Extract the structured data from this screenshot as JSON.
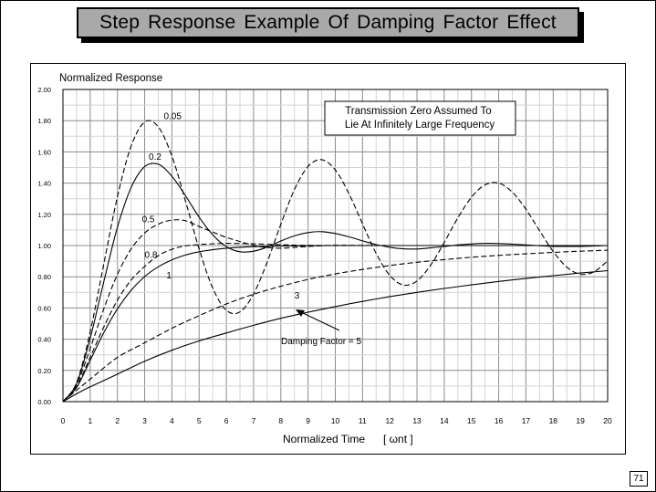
{
  "slide": {
    "title": "Step Response Example Of Damping Factor Effect",
    "page_number": "71"
  },
  "chart_data": {
    "type": "line",
    "ylabel": "Normalized Response",
    "xlabel": "Normalized Time",
    "xlabel_unit": "[ ωnt ]",
    "xlim": [
      0,
      20
    ],
    "ylim": [
      0,
      2
    ],
    "xticks": [
      "0",
      "1",
      "2",
      "3",
      "4",
      "5",
      "6",
      "7",
      "8",
      "9",
      "10",
      "11",
      "12",
      "13",
      "14",
      "15",
      "16",
      "17",
      "18",
      "19",
      "20"
    ],
    "yticks": [
      "0.00",
      "0.20",
      "0.40",
      "0.60",
      "0.80",
      "1.00",
      "1.20",
      "1.40",
      "1.60",
      "1.80",
      "2.00"
    ],
    "grid": true,
    "annotation_box": "Transmission Zero Assumed To Lie At Infinitely Large Frequency",
    "annotation_arrow_label": "Damping Factor = 5",
    "series": [
      {
        "name": "0.05",
        "zeta": 0.05,
        "dash": "6 3",
        "label_at": [
          3.7,
          1.81
        ],
        "x": [
          0,
          0.5,
          1,
          1.5,
          2,
          2.5,
          3,
          3.5,
          4,
          4.5,
          5,
          5.5,
          6,
          6.5,
          7,
          7.5,
          8,
          8.5,
          9,
          9.5,
          10,
          10.5,
          11,
          11.5,
          12,
          12.5,
          13,
          13.5,
          14,
          14.5,
          15,
          15.5,
          16,
          16.5,
          17,
          17.5,
          18,
          18.5,
          19,
          19.5,
          20
        ],
        "values": [
          0,
          0.12,
          0.446,
          0.883,
          1.313,
          1.635,
          1.791,
          1.761,
          1.573,
          1.285,
          0.978,
          0.727,
          0.585,
          0.575,
          0.69,
          0.895,
          1.137,
          1.359,
          1.507,
          1.55,
          1.485,
          1.333,
          1.138,
          0.949,
          0.809,
          0.747,
          0.773,
          0.874,
          1.02,
          1.177,
          1.31,
          1.389,
          1.4,
          1.342,
          1.232,
          1.095,
          0.962,
          0.862,
          0.816,
          0.832,
          0.901
        ]
      },
      {
        "name": "0.2",
        "zeta": 0.2,
        "dash": "none",
        "label_at": [
          3.15,
          1.55
        ],
        "x": [
          0,
          0.5,
          1,
          1.5,
          2,
          2.5,
          3,
          3.5,
          4,
          4.5,
          5,
          5.5,
          6,
          6.5,
          7,
          7.5,
          8,
          8.5,
          9,
          9.5,
          10,
          10.5,
          11,
          11.5,
          12,
          12.5,
          13,
          13.5,
          14,
          14.5,
          15,
          15.5,
          16,
          16.5,
          17,
          17.5,
          18,
          18.5,
          19,
          19.5,
          20
        ],
        "values": [
          0,
          0.115,
          0.405,
          0.769,
          1.117,
          1.37,
          1.505,
          1.521,
          1.444,
          1.319,
          1.182,
          1.069,
          0.993,
          0.96,
          0.964,
          0.99,
          1.029,
          1.062,
          1.083,
          1.089,
          1.077,
          1.056,
          1.03,
          1.006,
          0.989,
          0.979,
          0.978,
          0.985,
          0.994,
          1.004,
          1.01,
          1.014,
          1.013,
          1.009,
          1.004,
          0.999,
          0.995,
          0.994,
          0.995,
          0.997,
          1.0
        ]
      },
      {
        "name": "0.5",
        "zeta": 0.5,
        "dash": "6 3",
        "label_at": [
          2.9,
          1.15
        ],
        "x": [
          0,
          0.5,
          1,
          1.5,
          2,
          2.5,
          3,
          3.5,
          4,
          4.5,
          5,
          5.5,
          6,
          6.5,
          7,
          7.5,
          8,
          8.5,
          9,
          9.5,
          10,
          11,
          12,
          13,
          14,
          15,
          16,
          17,
          18,
          19,
          20
        ],
        "values": [
          0,
          0.11,
          0.34,
          0.595,
          0.815,
          0.977,
          1.08,
          1.137,
          1.163,
          1.159,
          1.122,
          1.086,
          1.052,
          1.026,
          1.001,
          0.987,
          0.983,
          0.988,
          0.994,
          0.999,
          1.002,
          1.001,
          1.0,
          1.0,
          1.0,
          1.0,
          1.0,
          1.0,
          1.0,
          1.0,
          1.0
        ]
      },
      {
        "name": "0.8",
        "zeta": 0.8,
        "dash": "6 3",
        "label_at": [
          3.0,
          0.92
        ],
        "x": [
          0,
          0.5,
          1,
          1.5,
          2,
          2.5,
          3,
          3.5,
          4,
          4.5,
          5,
          5.5,
          6,
          7,
          8,
          9,
          10,
          12,
          14,
          16,
          18,
          20
        ],
        "values": [
          0,
          0.097,
          0.284,
          0.479,
          0.65,
          0.778,
          0.866,
          0.935,
          0.976,
          0.998,
          1.006,
          1.011,
          1.014,
          1.011,
          1.005,
          1.001,
          1.0,
          1.0,
          1.0,
          1.0,
          1.0,
          1.0
        ]
      },
      {
        "name": "1",
        "zeta": 1.0,
        "dash": "none",
        "label_at": [
          3.8,
          0.79
        ],
        "x": [
          0,
          0.5,
          1,
          1.5,
          2,
          2.5,
          3,
          3.5,
          4,
          4.5,
          5,
          5.5,
          6,
          7,
          8,
          9,
          10,
          12,
          14,
          16,
          18,
          20
        ],
        "values": [
          0,
          0.09,
          0.264,
          0.442,
          0.594,
          0.713,
          0.801,
          0.864,
          0.908,
          0.939,
          0.96,
          0.973,
          0.983,
          0.993,
          0.997,
          0.999,
          1.0,
          1.0,
          1.0,
          1.0,
          1.0,
          1.0
        ]
      },
      {
        "name": "3",
        "zeta": 3.0,
        "dash": "6 3",
        "label_at": [
          8.5,
          0.66
        ],
        "x": [
          0,
          0.5,
          1,
          2,
          3,
          4,
          5,
          6,
          7,
          8,
          9,
          10,
          11,
          12,
          13,
          14,
          15,
          16,
          17,
          18,
          19,
          20
        ],
        "values": [
          0,
          0.073,
          0.144,
          0.283,
          0.377,
          0.47,
          0.551,
          0.626,
          0.688,
          0.739,
          0.783,
          0.818,
          0.847,
          0.872,
          0.893,
          0.91,
          0.925,
          0.937,
          0.947,
          0.956,
          0.964,
          0.97
        ]
      },
      {
        "name": "5",
        "zeta": 5.0,
        "dash": "none",
        "label_at": null,
        "x": [
          0,
          0.5,
          1,
          2,
          3,
          4,
          5,
          6,
          7,
          8,
          9,
          10,
          11,
          12,
          13,
          14,
          15,
          16,
          17,
          18,
          19,
          20
        ],
        "values": [
          0,
          0.05,
          0.095,
          0.176,
          0.259,
          0.329,
          0.389,
          0.44,
          0.489,
          0.534,
          0.573,
          0.609,
          0.642,
          0.673,
          0.7,
          0.725,
          0.748,
          0.77,
          0.789,
          0.807,
          0.824,
          0.839
        ]
      }
    ]
  }
}
